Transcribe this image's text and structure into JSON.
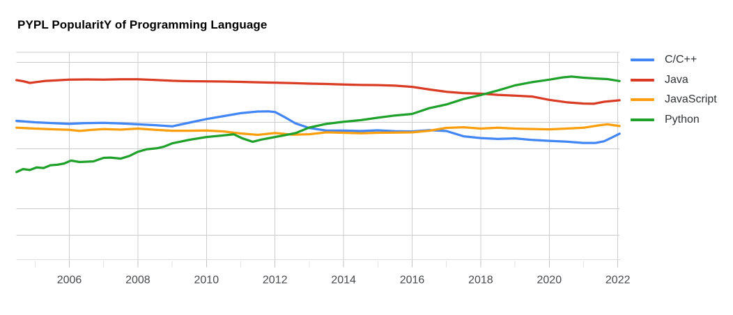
{
  "chart_data": {
    "type": "line",
    "title": "PYPL PopularitY of Programming Language",
    "xlabel": "",
    "ylabel": "",
    "legend_position": "right",
    "grid": true,
    "x_axis": {
      "range": [
        2004.46,
        2022.05
      ],
      "ticks": [
        {
          "year": 2006,
          "label": "2006"
        },
        {
          "year": 2008,
          "label": "2008"
        },
        {
          "year": 2010,
          "label": "2010"
        },
        {
          "year": 2012,
          "label": "2012"
        },
        {
          "year": 2014,
          "label": "2014"
        },
        {
          "year": 2016,
          "label": "2016"
        },
        {
          "year": 2018,
          "label": "2018"
        },
        {
          "year": 2020,
          "label": "2020"
        },
        {
          "year": 2022,
          "label": "2022"
        }
      ],
      "minor_tick_years": [
        2005,
        2007,
        2009,
        2011,
        2013,
        2015,
        2017,
        2019,
        2021
      ]
    },
    "y_axis": {
      "scale": "log",
      "unit": "% share",
      "labels_visible": false,
      "gridline_values": [
        50,
        10,
        5,
        1,
        0.5
      ],
      "top_edge_value": 65,
      "bottom_edge_value": 0.25
    },
    "colors": {
      "c_cpp": "#4285F4",
      "java": "#D93B25",
      "javascript": "#FA9E0D",
      "python": "#1FA02A",
      "gridline": "#cccccc",
      "axis_label": "#47494d"
    },
    "series": [
      {
        "id": "c-cpp",
        "name": "C/C++",
        "color": "#4285F4",
        "points": [
          [
            2004.46,
            10.4
          ],
          [
            2005,
            10.0
          ],
          [
            2005.5,
            9.8
          ],
          [
            2006,
            9.58
          ],
          [
            2006.4,
            9.77
          ],
          [
            2007,
            9.85
          ],
          [
            2007.5,
            9.71
          ],
          [
            2008,
            9.47
          ],
          [
            2008.5,
            9.27
          ],
          [
            2009,
            8.97
          ],
          [
            2009.5,
            9.9
          ],
          [
            2010,
            10.92
          ],
          [
            2010.5,
            11.79
          ],
          [
            2011,
            12.75
          ],
          [
            2011.5,
            13.33
          ],
          [
            2011.8,
            13.4
          ],
          [
            2012,
            13.18
          ],
          [
            2012.3,
            11.36
          ],
          [
            2012.6,
            9.71
          ],
          [
            2013,
            8.58
          ],
          [
            2013.5,
            8.02
          ],
          [
            2014,
            8.02
          ],
          [
            2014.5,
            7.93
          ],
          [
            2015,
            8.07
          ],
          [
            2015.5,
            7.9
          ],
          [
            2016,
            7.83
          ],
          [
            2016.5,
            8.12
          ],
          [
            2017,
            7.93
          ],
          [
            2017.5,
            6.88
          ],
          [
            2018,
            6.57
          ],
          [
            2018.5,
            6.41
          ],
          [
            2019,
            6.51
          ],
          [
            2019.5,
            6.24
          ],
          [
            2020,
            6.1
          ],
          [
            2020.5,
            5.96
          ],
          [
            2021,
            5.77
          ],
          [
            2021.35,
            5.77
          ],
          [
            2021.6,
            6.03
          ],
          [
            2021.85,
            6.73
          ],
          [
            2022.05,
            7.39
          ]
        ]
      },
      {
        "id": "java",
        "name": "Java",
        "color": "#D93B25",
        "points": [
          [
            2004.46,
            30.8
          ],
          [
            2004.65,
            30.0
          ],
          [
            2004.85,
            28.6
          ],
          [
            2005.05,
            29.3
          ],
          [
            2005.3,
            30.2
          ],
          [
            2005.6,
            30.6
          ],
          [
            2006,
            31.2
          ],
          [
            2006.5,
            31.4
          ],
          [
            2007,
            31.3
          ],
          [
            2007.5,
            31.5
          ],
          [
            2008,
            31.5
          ],
          [
            2008.5,
            31.0
          ],
          [
            2009,
            30.3
          ],
          [
            2009.5,
            30.0
          ],
          [
            2010,
            29.8
          ],
          [
            2010.5,
            29.7
          ],
          [
            2011,
            29.4
          ],
          [
            2011.5,
            29.1
          ],
          [
            2012,
            28.8
          ],
          [
            2012.5,
            28.5
          ],
          [
            2013,
            28.1
          ],
          [
            2013.5,
            27.8
          ],
          [
            2014,
            27.4
          ],
          [
            2014.5,
            27.1
          ],
          [
            2015,
            27.0
          ],
          [
            2015.5,
            26.6
          ],
          [
            2016,
            25.8
          ],
          [
            2016.5,
            24.0
          ],
          [
            2017,
            22.6
          ],
          [
            2017.5,
            21.8
          ],
          [
            2018,
            21.5
          ],
          [
            2018.5,
            20.8
          ],
          [
            2019,
            20.4
          ],
          [
            2019.5,
            19.9
          ],
          [
            2020,
            18.2
          ],
          [
            2020.5,
            17.1
          ],
          [
            2021,
            16.5
          ],
          [
            2021.3,
            16.4
          ],
          [
            2021.6,
            17.3
          ],
          [
            2022.05,
            18.0
          ]
        ]
      },
      {
        "id": "javascript",
        "name": "JavaScript",
        "color": "#FA9E0D",
        "points": [
          [
            2004.46,
            8.67
          ],
          [
            2005,
            8.46
          ],
          [
            2005.5,
            8.3
          ],
          [
            2006,
            8.19
          ],
          [
            2006.3,
            7.94
          ],
          [
            2006.6,
            8.15
          ],
          [
            2007,
            8.35
          ],
          [
            2007.5,
            8.22
          ],
          [
            2008,
            8.46
          ],
          [
            2008.5,
            8.19
          ],
          [
            2009,
            7.98
          ],
          [
            2009.5,
            7.98
          ],
          [
            2010,
            8.03
          ],
          [
            2010.5,
            7.83
          ],
          [
            2011,
            7.42
          ],
          [
            2011.5,
            7.15
          ],
          [
            2012,
            7.51
          ],
          [
            2012.5,
            7.18
          ],
          [
            2013,
            7.28
          ],
          [
            2013.5,
            7.65
          ],
          [
            2014,
            7.56
          ],
          [
            2014.5,
            7.47
          ],
          [
            2015,
            7.56
          ],
          [
            2015.5,
            7.6
          ],
          [
            2016,
            7.65
          ],
          [
            2016.5,
            7.98
          ],
          [
            2017,
            8.62
          ],
          [
            2017.5,
            8.76
          ],
          [
            2018,
            8.46
          ],
          [
            2018.5,
            8.65
          ],
          [
            2019,
            8.46
          ],
          [
            2019.5,
            8.36
          ],
          [
            2020,
            8.28
          ],
          [
            2020.5,
            8.46
          ],
          [
            2021,
            8.65
          ],
          [
            2021.5,
            9.28
          ],
          [
            2021.7,
            9.47
          ],
          [
            2022.05,
            9.05
          ]
        ]
      },
      {
        "id": "python",
        "name": "Python",
        "color": "#1FA02A",
        "points": [
          [
            2004.46,
            2.65
          ],
          [
            2004.65,
            2.87
          ],
          [
            2004.85,
            2.8
          ],
          [
            2005.05,
            3.0
          ],
          [
            2005.25,
            2.95
          ],
          [
            2005.45,
            3.18
          ],
          [
            2005.65,
            3.22
          ],
          [
            2005.85,
            3.33
          ],
          [
            2006.05,
            3.6
          ],
          [
            2006.3,
            3.46
          ],
          [
            2006.7,
            3.52
          ],
          [
            2007,
            3.87
          ],
          [
            2007.2,
            3.9
          ],
          [
            2007.5,
            3.79
          ],
          [
            2007.75,
            4.07
          ],
          [
            2008,
            4.55
          ],
          [
            2008.25,
            4.86
          ],
          [
            2008.55,
            5.0
          ],
          [
            2008.75,
            5.2
          ],
          [
            2009,
            5.7
          ],
          [
            2009.5,
            6.27
          ],
          [
            2010,
            6.75
          ],
          [
            2010.4,
            7.0
          ],
          [
            2010.8,
            7.25
          ],
          [
            2011.05,
            6.5
          ],
          [
            2011.35,
            5.95
          ],
          [
            2011.6,
            6.3
          ],
          [
            2012,
            6.75
          ],
          [
            2012.3,
            7.1
          ],
          [
            2012.6,
            7.5
          ],
          [
            2013,
            8.7
          ],
          [
            2013.5,
            9.6
          ],
          [
            2014,
            10.15
          ],
          [
            2014.5,
            10.6
          ],
          [
            2015,
            11.3
          ],
          [
            2015.5,
            12.0
          ],
          [
            2016,
            12.5
          ],
          [
            2016.5,
            14.6
          ],
          [
            2017,
            16.1
          ],
          [
            2017.5,
            18.6
          ],
          [
            2018,
            20.7
          ],
          [
            2018.5,
            23.4
          ],
          [
            2019,
            26.8
          ],
          [
            2019.5,
            29.2
          ],
          [
            2020,
            31.2
          ],
          [
            2020.4,
            33.2
          ],
          [
            2020.65,
            33.9
          ],
          [
            2021,
            32.9
          ],
          [
            2021.4,
            32.2
          ],
          [
            2021.7,
            31.7
          ],
          [
            2022.05,
            30.1
          ]
        ]
      }
    ]
  }
}
